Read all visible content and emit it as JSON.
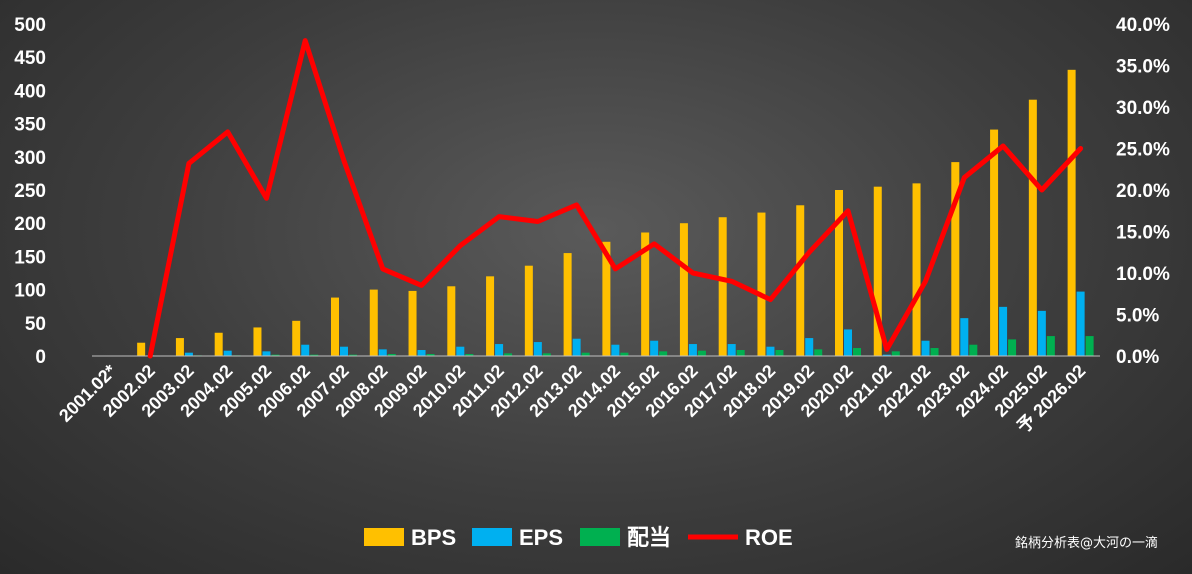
{
  "chart_data": {
    "type": "bar",
    "categories": [
      "2001.02*",
      "2002.02",
      "2003.02",
      "2004.02",
      "2005.02",
      "2006.02",
      "2007.02",
      "2008.02",
      "2009.02",
      "2010.02",
      "2011.02",
      "2012.02",
      "2013.02",
      "2014.02",
      "2015.02",
      "2016.02",
      "2017.02",
      "2018.02",
      "2019.02",
      "2020.02",
      "2021.02",
      "2022.02",
      "2023.02",
      "2024.02",
      "2025.02",
      "予 2026.02"
    ],
    "series": [
      {
        "name": "BPS",
        "type": "bar",
        "axis": "left",
        "color": "#FFC000",
        "values": [
          0,
          20,
          27,
          35,
          43,
          53,
          88,
          100,
          98,
          105,
          120,
          136,
          155,
          172,
          186,
          200,
          209,
          216,
          227,
          250,
          255,
          260,
          292,
          341,
          386,
          431
        ]
      },
      {
        "name": "EPS",
        "type": "bar",
        "axis": "left",
        "color": "#00B0F0",
        "values": [
          0,
          1,
          5,
          8,
          7,
          17,
          14,
          10,
          9,
          14,
          18,
          21,
          26,
          17,
          23,
          18,
          18,
          14,
          27,
          40,
          2,
          23,
          57,
          74,
          68,
          97
        ]
      },
      {
        "name": "配当",
        "type": "bar",
        "axis": "left",
        "color": "#00B050",
        "values": [
          0,
          0,
          1,
          1,
          2,
          2,
          2,
          3,
          3,
          3,
          4,
          4,
          5,
          5,
          7,
          8,
          9,
          9,
          10,
          12,
          7,
          12,
          17,
          25,
          30,
          30
        ]
      },
      {
        "name": "ROE",
        "type": "line",
        "axis": "right",
        "color": "#FF0000",
        "values": [
          null,
          0.0,
          23.2,
          27.0,
          19.0,
          38.0,
          23.5,
          10.5,
          8.5,
          13.3,
          16.8,
          16.2,
          18.2,
          10.5,
          13.5,
          10.0,
          9.0,
          6.8,
          12.5,
          17.5,
          0.8,
          9.0,
          21.5,
          25.3,
          20.0,
          25.0
        ]
      }
    ],
    "left_axis": {
      "min": 0,
      "max": 500,
      "step": 50,
      "tick_labels": [
        "0",
        "50",
        "100",
        "150",
        "200",
        "250",
        "300",
        "350",
        "400",
        "450",
        "500"
      ]
    },
    "right_axis": {
      "min": 0,
      "max": 40,
      "step": 5,
      "tick_labels": [
        "0.0%",
        "5.0%",
        "10.0%",
        "15.0%",
        "20.0%",
        "25.0%",
        "30.0%",
        "35.0%",
        "40.0%"
      ]
    },
    "grid": false,
    "legend": {
      "position": "bottom-center",
      "entries": [
        "BPS",
        "EPS",
        "配当",
        "ROE"
      ]
    },
    "watermark": "銘柄分析表@大河の一滴"
  }
}
